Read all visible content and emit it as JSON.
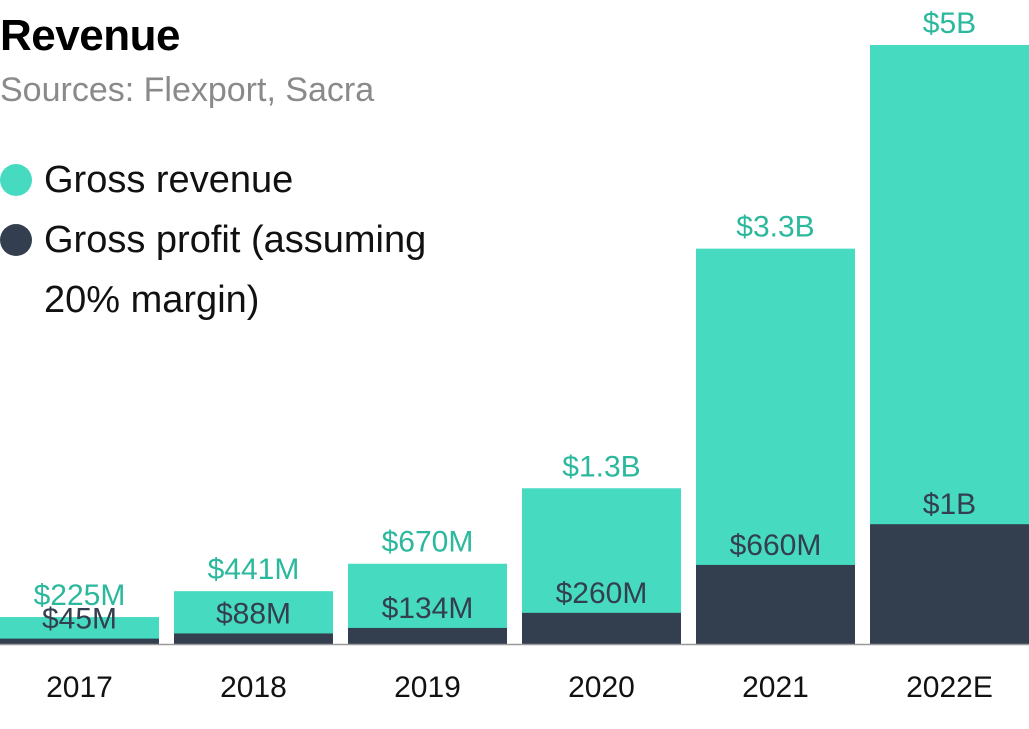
{
  "chart_data": {
    "type": "bar",
    "title": "Revenue",
    "subtitle": "Sources: Flexport, Sacra",
    "categories": [
      "2017",
      "2018",
      "2019",
      "2020",
      "2021",
      "2022E"
    ],
    "series": [
      {
        "name": "Gross revenue",
        "color": "#46dbc0",
        "values": [
          225,
          441,
          670,
          1300,
          3300,
          5000
        ],
        "labels": [
          "$225M",
          "$441M",
          "$670M",
          "$1.3B",
          "$3.3B",
          "$5B"
        ]
      },
      {
        "name": "Gross profit (assuming 20% margin)",
        "color": "#333f4f",
        "values": [
          45,
          88,
          134,
          260,
          660,
          1000
        ],
        "labels": [
          "$45M",
          "$88M",
          "$134M",
          "$260M",
          "$660M",
          "$1B"
        ]
      }
    ],
    "unit": "$M",
    "ylim": [
      0,
      5000
    ],
    "grid": false,
    "legend_position": "top-left",
    "overlay": true
  },
  "legend": {
    "items": [
      {
        "label": "Gross revenue",
        "color": "#46dbc0"
      },
      {
        "label": "Gross profit (assuming",
        "label_line2": "20% margin)",
        "color": "#333f4f"
      }
    ]
  },
  "colors": {
    "revenue_label": "#2bb89c",
    "profit_label": "#333f4f",
    "axis": "#999999"
  }
}
